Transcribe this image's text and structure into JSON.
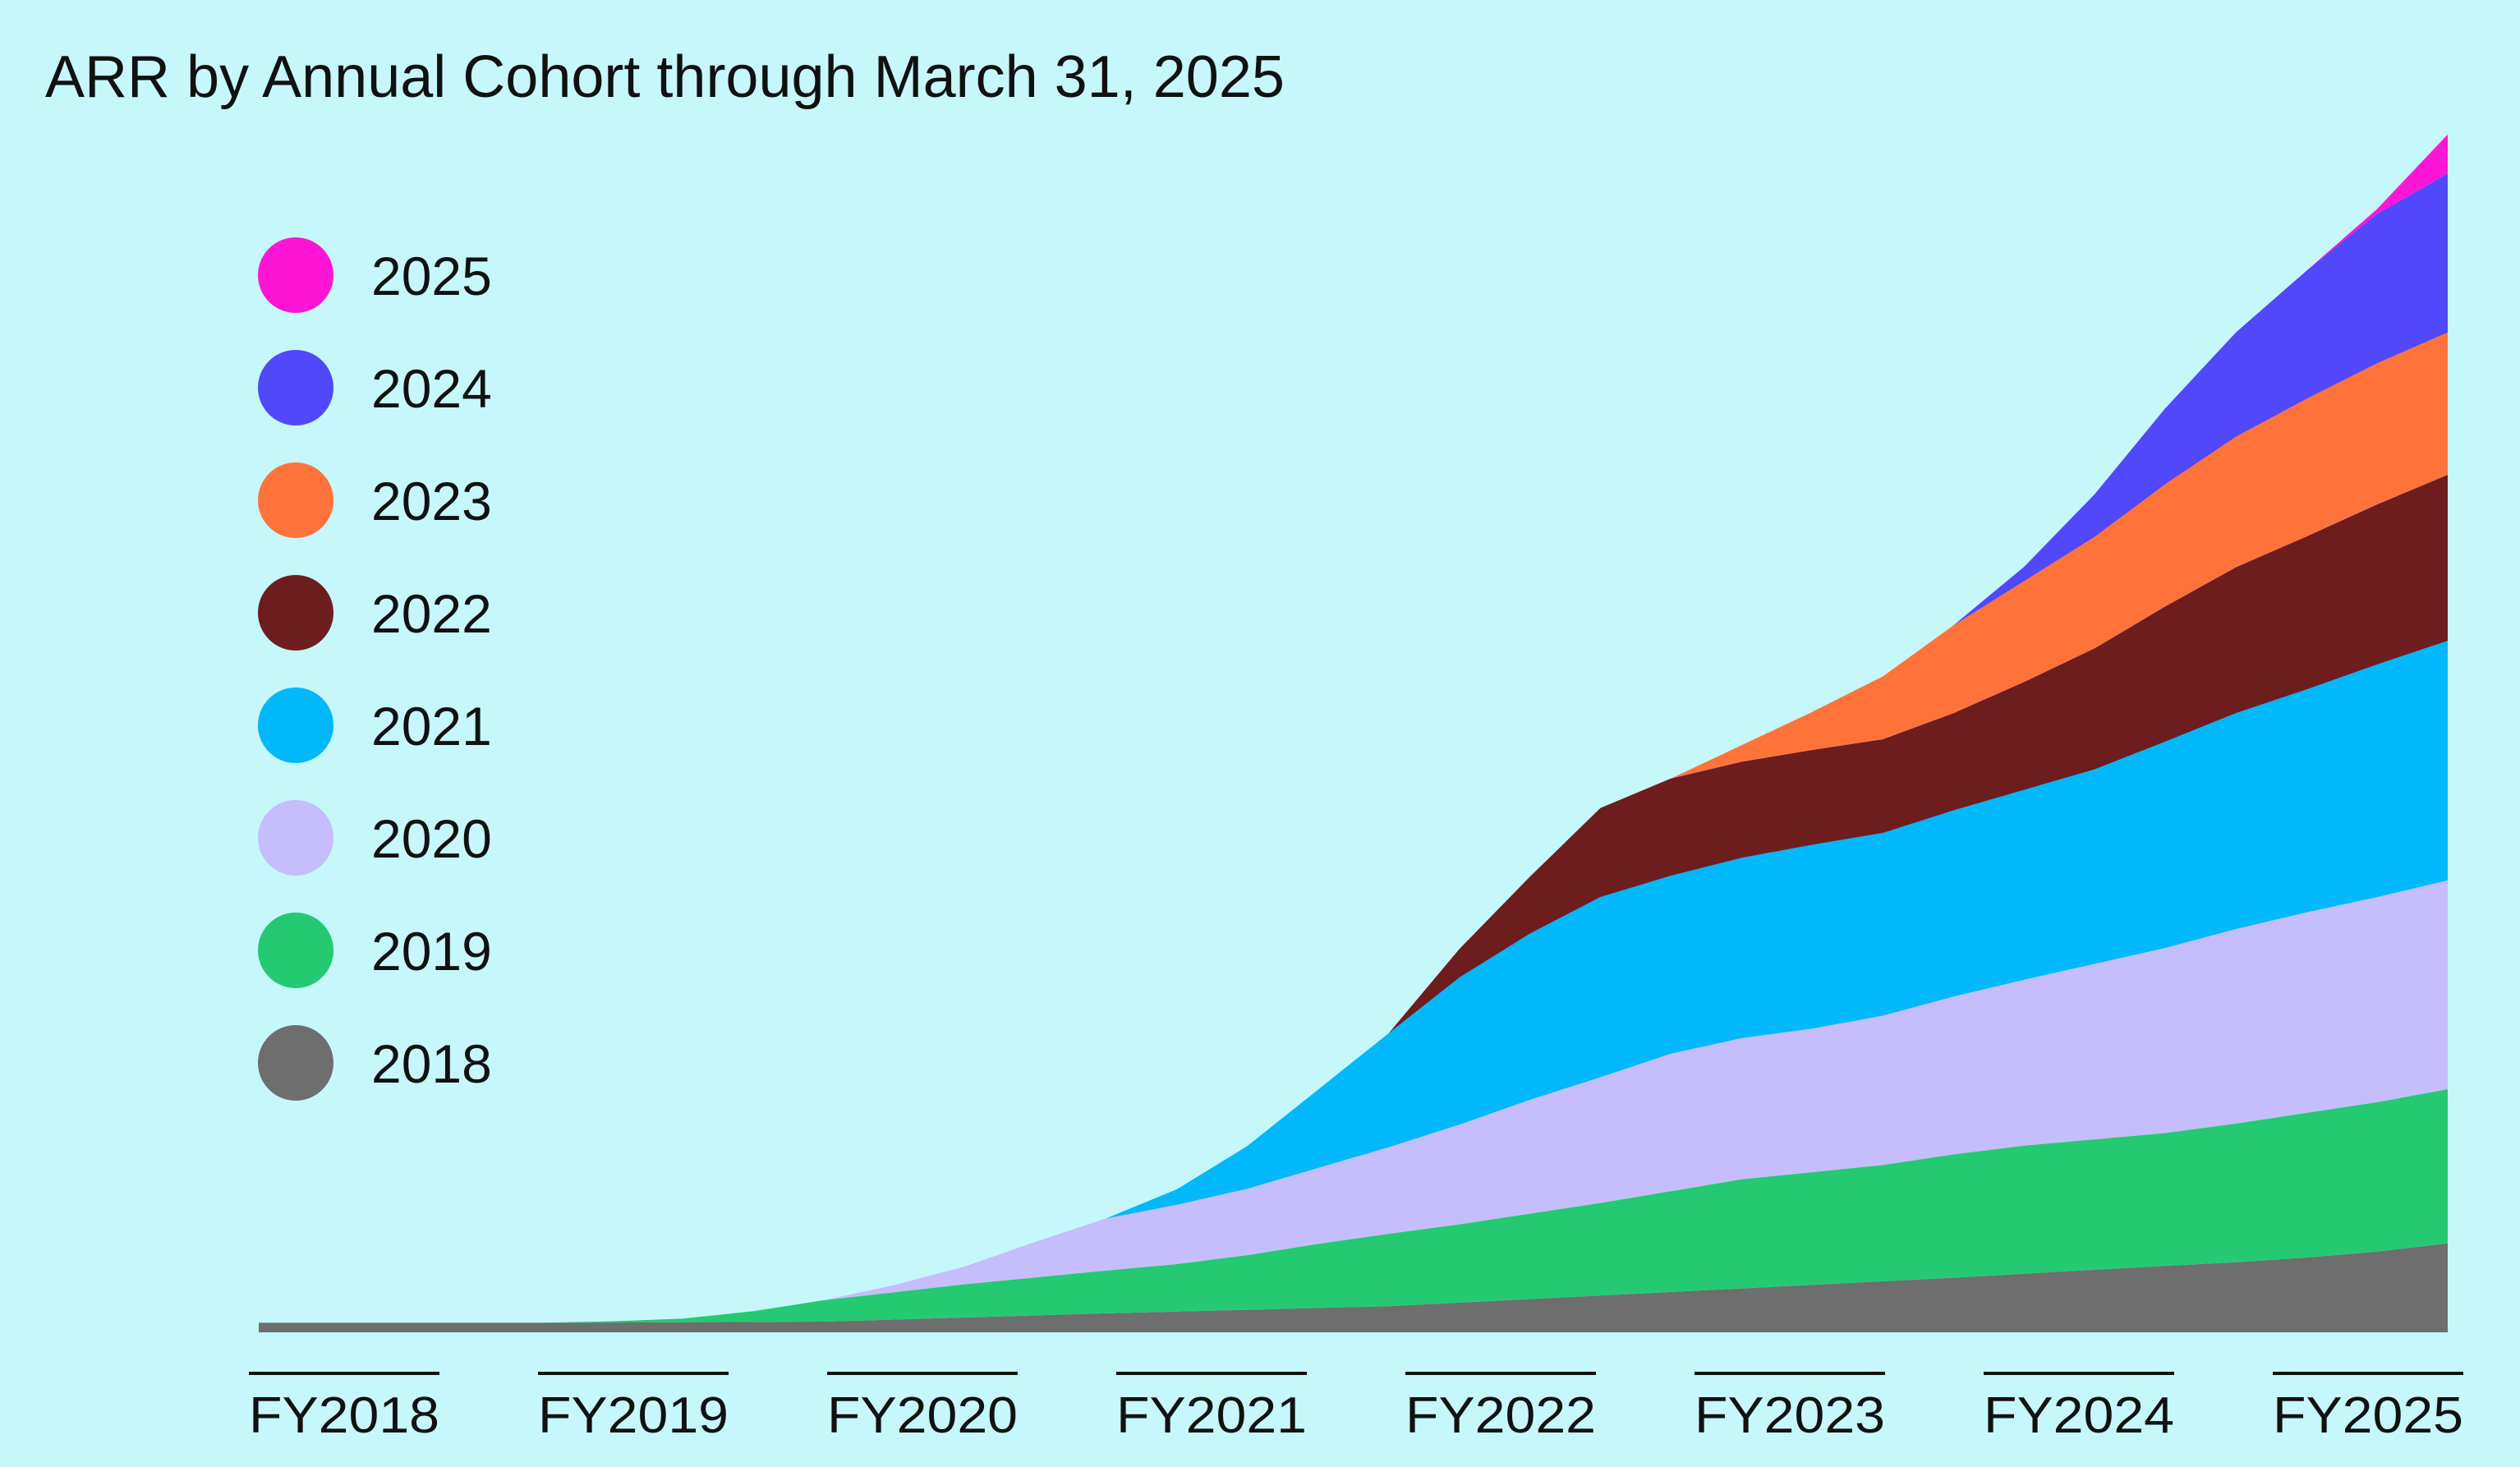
{
  "chart_data": {
    "type": "area",
    "title": "ARR by Annual Cohort through March 31, 2025",
    "xlabel": "",
    "ylabel": "",
    "stacked": true,
    "grid": false,
    "y_axis_labels": false,
    "legend_position": "top-left",
    "x_ticks": [
      "FY2018",
      "FY2019",
      "FY2020",
      "FY2021",
      "FY2022",
      "FY2023",
      "FY2024",
      "FY2025"
    ],
    "x_range": [
      2018.0,
      2025.75
    ],
    "y_range": [
      0,
      100
    ],
    "series": [
      {
        "name": "2018",
        "color": "#6e6e6e",
        "x": [
          2018.0,
          2019.0,
          2020.0,
          2021.0,
          2022.0,
          2023.0,
          2024.0,
          2024.75,
          2025.0,
          2025.25,
          2025.5,
          2025.75
        ],
        "values": [
          0.8,
          0.8,
          0.9,
          1.6,
          2.2,
          3.4,
          4.6,
          5.6,
          5.9,
          6.3,
          6.8,
          7.5
        ]
      },
      {
        "name": "2019",
        "color": "#25c971",
        "x": [
          2019.0,
          2019.25,
          2019.5,
          2019.75,
          2020.0,
          2020.25,
          2020.5,
          2020.75,
          2021.0,
          2021.25,
          2021.5,
          2021.75,
          2022.0,
          2022.25,
          2022.5,
          2022.75,
          2023.0,
          2023.25,
          2023.5,
          2023.75,
          2024.0,
          2024.25,
          2024.5,
          2024.75,
          2025.0,
          2025.25,
          2025.5,
          2025.75
        ],
        "values": [
          0.0,
          0.1,
          0.3,
          0.9,
          1.8,
          2.3,
          2.8,
          3.2,
          3.6,
          4.0,
          4.6,
          5.4,
          6.1,
          6.6,
          7.2,
          7.8,
          8.5,
          9.2,
          9.5,
          9.8,
          10.4,
          10.8,
          11.0,
          11.2,
          11.7,
          12.2,
          12.6,
          13.0
        ]
      },
      {
        "name": "2020",
        "color": "#c5bdfc",
        "x": [
          2020.0,
          2020.25,
          2020.5,
          2020.75,
          2021.0,
          2021.25,
          2021.5,
          2021.75,
          2022.0,
          2022.25,
          2022.5,
          2022.75,
          2023.0,
          2023.25,
          2023.5,
          2023.75,
          2024.0,
          2024.25,
          2024.5,
          2024.75,
          2025.0,
          2025.25,
          2025.5,
          2025.75
        ],
        "values": [
          0.0,
          0.6,
          1.5,
          3.0,
          4.4,
          5.0,
          5.6,
          6.4,
          7.3,
          8.4,
          9.6,
          10.6,
          11.6,
          11.9,
          12.1,
          12.6,
          13.3,
          14.0,
          14.8,
          15.6,
          16.4,
          16.9,
          17.3,
          17.6
        ]
      },
      {
        "name": "2021",
        "color": "#00b8fa",
        "x": [
          2021.0,
          2021.25,
          2021.5,
          2021.75,
          2022.0,
          2022.25,
          2022.5,
          2022.75,
          2023.0,
          2023.25,
          2023.5,
          2023.75,
          2024.0,
          2024.25,
          2024.5,
          2024.75,
          2025.0,
          2025.25,
          2025.5,
          2025.75
        ],
        "values": [
          0.0,
          1.3,
          3.6,
          6.6,
          9.6,
          12.4,
          14.0,
          15.2,
          15.0,
          15.2,
          15.5,
          15.4,
          15.7,
          16.0,
          16.4,
          17.4,
          18.2,
          18.8,
          19.6,
          20.2
        ]
      },
      {
        "name": "2022",
        "color": "#6e1d1f",
        "x": [
          2022.0,
          2022.25,
          2022.5,
          2022.75,
          2023.0,
          2023.25,
          2023.5,
          2023.75,
          2024.0,
          2024.25,
          2024.5,
          2024.75,
          2025.0,
          2025.25,
          2025.5,
          2025.75
        ],
        "values": [
          0.0,
          2.4,
          4.8,
          7.5,
          8.2,
          8.1,
          8.0,
          7.9,
          8.2,
          9.1,
          10.2,
          11.4,
          12.3,
          12.9,
          13.5,
          14.0
        ]
      },
      {
        "name": "2023",
        "color": "#ff733a",
        "x": [
          2023.0,
          2023.25,
          2023.5,
          2023.75,
          2024.0,
          2024.25,
          2024.5,
          2024.75,
          2025.0,
          2025.25,
          2025.5,
          2025.75
        ],
        "values": [
          0.0,
          1.4,
          3.2,
          5.3,
          7.4,
          8.5,
          9.4,
          10.3,
          11.0,
          11.6,
          11.9,
          12.0
        ]
      },
      {
        "name": "2024",
        "color": "#5048fa",
        "x": [
          2024.0,
          2024.25,
          2024.5,
          2024.75,
          2025.0,
          2025.25,
          2025.5,
          2025.75
        ],
        "values": [
          0.0,
          1.2,
          3.6,
          6.4,
          8.8,
          10.8,
          12.6,
          13.4
        ]
      },
      {
        "name": "2025",
        "color": "#ff15d6",
        "x": [
          2025.0,
          2025.25,
          2025.5,
          2025.75
        ],
        "values": [
          0.0,
          0.0,
          0.4,
          3.3
        ]
      }
    ]
  }
}
